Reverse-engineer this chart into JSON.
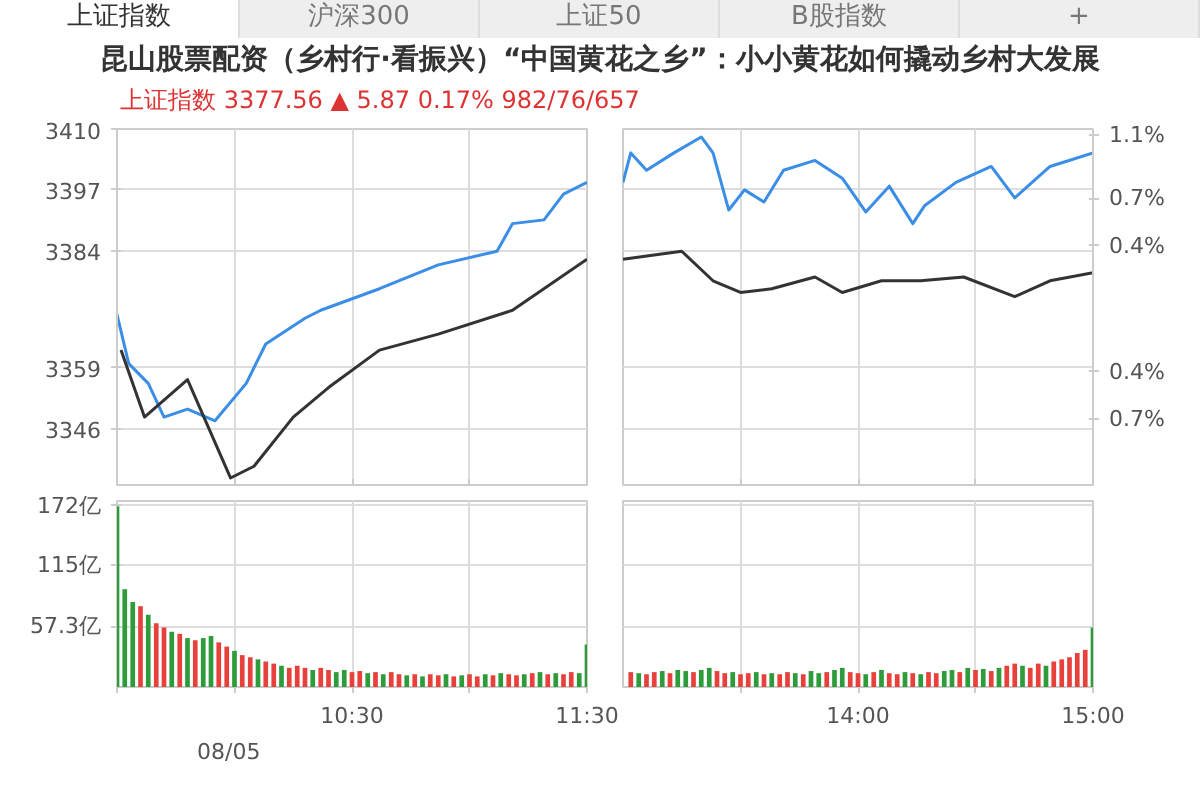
{
  "chart_data": [
    {
      "type": "line",
      "title": "昆山股票配资（乡村行·看振兴）“中国黄花之乡”：小小黄花如何撬动乡村大发展",
      "subtitle": "上证指数   3377.56   ▲ 5.87   0.17%   982/76/657",
      "annotations": [
        "上证指数",
        "沪深300",
        "上证50",
        "B股指数",
        "+"
      ],
      "xlim": [
        9.5,
        11.5
      ],
      "xticks": [
        9.5,
        10,
        10.5,
        11,
        11.5
      ],
      "tick_labels": "y",
      "ylim": [
        3334,
        3410
      ],
      "yticks": [
        3346,
        3359,
        3384,
        3397,
        3410
      ],
      "grid": true,
      "line_style": "solid",
      "series": [
        {
          "color": "#3a8ee6",
          "x": [
            9.5,
            9.55,
            9.633,
            9.7,
            9.8,
            9.917,
            10.05,
            10.133,
            10.3,
            10.367,
            10.617,
            10.867,
            11.117,
            11.183,
            11.317,
            11.4,
            11.5
          ],
          "values": [
            3370.4,
            3359.9,
            3355.7,
            3348.5,
            3350.2,
            3347.7,
            3355.7,
            3364.1,
            3369.6,
            3371.3,
            3375.9,
            3381.0,
            3383.9,
            3389.8,
            3390.6,
            3396.1,
            3398.6
          ]
        },
        {
          "color": "#333333",
          "x": [
            9.517,
            9.617,
            9.8,
            9.983,
            10.083,
            10.25,
            10.4,
            10.617,
            10.867,
            11.183,
            11.5
          ],
          "values": [
            3362.8,
            3348.5,
            3356.5,
            3335.5,
            3338.0,
            3348.5,
            3354.8,
            3362.8,
            3366.2,
            3371.3,
            3382.2
          ]
        }
      ]
    },
    {
      "type": "line",
      "xlim": [
        13,
        15
      ],
      "xticks": [
        13.5,
        14,
        14.5
      ],
      "tick_labels": false,
      "ylim": [
        3334,
        3410
      ],
      "yticks": [
        3346,
        3359,
        3384,
        3397,
        3410
      ],
      "y2lim": [
        -1.12,
        1.14
      ],
      "y2ticks": [
        {
          "value": -0.7,
          "label": "0.7%"
        },
        {
          "value": -0.4,
          "label": "0.4%"
        },
        {
          "value": 0.4,
          "label": "0.4%"
        },
        {
          "value": 0.7,
          "label": "0.7%"
        },
        {
          "value": 1.1,
          "label": "1.1%"
        }
      ],
      "grid": true,
      "line_style": "solid",
      "series": [
        {
          "color": "#3a8ee6",
          "x": [
            13,
            13.033,
            13.1,
            13.217,
            13.333,
            13.383,
            13.45,
            13.517,
            13.6,
            13.683,
            13.817,
            13.933,
            14.033,
            14.133,
            14.233,
            14.283,
            14.417,
            14.567,
            14.667,
            14.817,
            15
          ],
          "values": [
            3398.6,
            3404.9,
            3401.2,
            3404.9,
            3408.3,
            3404.9,
            3392.7,
            3397.0,
            3394.4,
            3401.2,
            3403.3,
            3399.5,
            3392.3,
            3397.8,
            3389.8,
            3393.6,
            3398.6,
            3402.0,
            3395.3,
            3402.0,
            3404.9
          ]
        },
        {
          "color": "#333333",
          "x": [
            13,
            13.25,
            13.383,
            13.5,
            13.633,
            13.817,
            13.933,
            14.1,
            14.267,
            14.45,
            14.667,
            14.817,
            15
          ],
          "values": [
            3382.2,
            3383.9,
            3377.6,
            3375.1,
            3375.9,
            3378.4,
            3375.1,
            3377.6,
            3377.6,
            3378.4,
            3374.2,
            3377.6,
            3379.3
          ]
        }
      ]
    },
    {
      "type": "bar",
      "xlim": [
        9.5,
        11.5
      ],
      "annotations": [
        "08/05"
      ],
      "xticks": [
        {
          "value": 9.5,
          "label": null
        },
        {
          "value": 10,
          "label": null
        },
        {
          "value": 10.5,
          "label": "10:30"
        },
        {
          "value": 11,
          "label": null
        },
        {
          "value": 11.5,
          "label": "11:30"
        }
      ],
      "ylim": [
        0,
        175
      ],
      "yticks": [
        {
          "value": 57.3,
          "label": "57.3亿"
        },
        {
          "value": 115,
          "label": "115亿"
        },
        {
          "value": 172,
          "label": "172亿"
        }
      ],
      "grid": true,
      "x": [
        9.5,
        9.533,
        9.567,
        9.6,
        9.633,
        9.667,
        9.7,
        9.733,
        9.767,
        9.8,
        9.833,
        9.867,
        9.9,
        9.933,
        9.967,
        10,
        10.033,
        10.067,
        10.1,
        10.133,
        10.167,
        10.2,
        10.233,
        10.267,
        10.3,
        10.333,
        10.367,
        10.4,
        10.433,
        10.467,
        10.5,
        10.533,
        10.567,
        10.6,
        10.633,
        10.667,
        10.7,
        10.733,
        10.767,
        10.8,
        10.833,
        10.867,
        10.9,
        10.933,
        10.967,
        11,
        11.033,
        11.067,
        11.1,
        11.133,
        11.167,
        11.2,
        11.233,
        11.267,
        11.3,
        11.333,
        11.367,
        11.4,
        11.433,
        11.467,
        11.5
      ],
      "values": [
        170,
        92,
        80,
        76,
        68,
        60,
        56,
        52,
        50,
        46,
        44,
        46,
        48,
        42,
        38,
        34,
        30,
        28,
        26,
        24,
        22,
        20,
        18,
        20,
        18,
        16,
        18,
        16,
        14,
        16,
        14,
        15,
        13,
        14,
        12,
        14,
        12,
        11,
        12,
        10,
        12,
        11,
        12,
        10,
        11,
        12,
        10,
        12,
        11,
        13,
        12,
        11,
        12,
        13,
        14,
        12,
        13,
        12,
        14,
        13,
        40
      ],
      "colors": [
        "#2e9c3a",
        "#2e9c3a",
        "#2e9c3a",
        "#e8413c",
        "#2e9c3a",
        "#e8413c",
        "#e8413c",
        "#2e9c3a",
        "#e8413c",
        "#2e9c3a",
        "#e8413c",
        "#2e9c3a",
        "#2e9c3a",
        "#e8413c",
        "#e8413c",
        "#2e9c3a",
        "#e8413c",
        "#e8413c",
        "#2e9c3a",
        "#e8413c",
        "#e8413c",
        "#2e9c3a",
        "#e8413c",
        "#e8413c",
        "#e8413c",
        "#2e9c3a",
        "#e8413c",
        "#e8413c",
        "#2e9c3a",
        "#2e9c3a",
        "#e8413c",
        "#e8413c",
        "#2e9c3a",
        "#e8413c",
        "#2e9c3a",
        "#e8413c",
        "#e8413c",
        "#2e9c3a",
        "#e8413c",
        "#2e9c3a",
        "#e8413c",
        "#e8413c",
        "#2e9c3a",
        "#e8413c",
        "#2e9c3a",
        "#e8413c",
        "#e8413c",
        "#2e9c3a",
        "#e8413c",
        "#2e9c3a",
        "#e8413c",
        "#e8413c",
        "#2e9c3a",
        "#e8413c",
        "#2e9c3a",
        "#e8413c",
        "#2e9c3a",
        "#e8413c",
        "#e8413c",
        "#2e9c3a",
        "#2e9c3a"
      ]
    },
    {
      "type": "bar",
      "xlim": [
        13,
        15
      ],
      "tick_labels": "x",
      "xticks": [
        {
          "value": 13.5,
          "label": null
        },
        {
          "value": 14,
          "label": "14:00"
        },
        {
          "value": 14.5,
          "label": null
        },
        {
          "value": 15,
          "label": "15:00"
        }
      ],
      "ylim": [
        0,
        175
      ],
      "yticks": [
        57.3,
        115,
        172
      ],
      "grid": true,
      "x": [
        13.033,
        13.067,
        13.1,
        13.133,
        13.167,
        13.2,
        13.233,
        13.267,
        13.3,
        13.333,
        13.367,
        13.4,
        13.433,
        13.467,
        13.5,
        13.533,
        13.567,
        13.6,
        13.633,
        13.667,
        13.7,
        13.733,
        13.767,
        13.8,
        13.833,
        13.867,
        13.9,
        13.933,
        13.967,
        14,
        14.033,
        14.067,
        14.1,
        14.133,
        14.167,
        14.2,
        14.233,
        14.267,
        14.3,
        14.333,
        14.367,
        14.4,
        14.433,
        14.467,
        14.5,
        14.533,
        14.567,
        14.6,
        14.633,
        14.667,
        14.7,
        14.733,
        14.767,
        14.8,
        14.833,
        14.867,
        14.9,
        14.933,
        14.967,
        15
      ],
      "values": [
        14,
        13,
        12,
        14,
        15,
        13,
        16,
        15,
        14,
        16,
        18,
        15,
        13,
        14,
        12,
        13,
        14,
        12,
        13,
        12,
        14,
        13,
        12,
        15,
        13,
        14,
        16,
        18,
        14,
        13,
        12,
        14,
        16,
        13,
        12,
        14,
        13,
        12,
        14,
        13,
        15,
        16,
        14,
        18,
        16,
        17,
        15,
        18,
        20,
        22,
        20,
        18,
        22,
        20,
        24,
        26,
        28,
        32,
        35,
        56
      ],
      "colors": [
        "#e8413c",
        "#2e9c3a",
        "#e8413c",
        "#e8413c",
        "#2e9c3a",
        "#e8413c",
        "#2e9c3a",
        "#2e9c3a",
        "#e8413c",
        "#2e9c3a",
        "#2e9c3a",
        "#e8413c",
        "#e8413c",
        "#2e9c3a",
        "#e8413c",
        "#e8413c",
        "#2e9c3a",
        "#e8413c",
        "#2e9c3a",
        "#e8413c",
        "#e8413c",
        "#2e9c3a",
        "#e8413c",
        "#2e9c3a",
        "#2e9c3a",
        "#e8413c",
        "#2e9c3a",
        "#2e9c3a",
        "#e8413c",
        "#e8413c",
        "#2e9c3a",
        "#e8413c",
        "#2e9c3a",
        "#e8413c",
        "#e8413c",
        "#2e9c3a",
        "#e8413c",
        "#2e9c3a",
        "#e8413c",
        "#e8413c",
        "#2e9c3a",
        "#2e9c3a",
        "#e8413c",
        "#2e9c3a",
        "#e8413c",
        "#2e9c3a",
        "#e8413c",
        "#2e9c3a",
        "#e8413c",
        "#e8413c",
        "#2e9c3a",
        "#e8413c",
        "#e8413c",
        "#2e9c3a",
        "#e8413c",
        "#e8413c",
        "#e8413c",
        "#e8413c",
        "#e8413c",
        "#2e9c3a"
      ]
    }
  ]
}
